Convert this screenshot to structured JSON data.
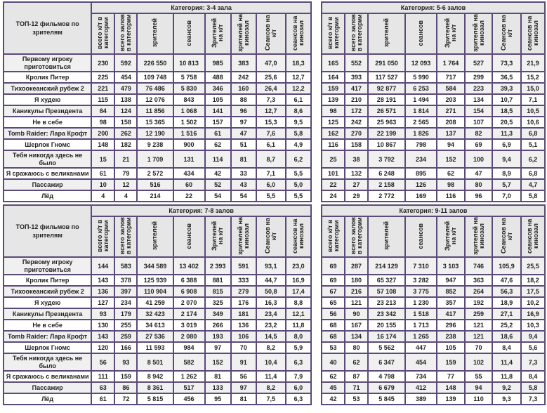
{
  "corner_label": "ТОП-12 фильмов по зрителям",
  "columns": [
    "всего к/т в категории",
    "всего залов в категории",
    "зрителей",
    "сеансов",
    "Зрителей на к/т",
    "зрителей на кинозал",
    "Сеансов на к/т",
    "сеансов на кинозал"
  ],
  "films": [
    "Первому игроку приготовиться",
    "Кролик Питер",
    "Тихоокеанский рубеж 2",
    "Я худею",
    "Каникулы Президента",
    "Не в себе",
    "Tomb Raider: Лара Крофт",
    "Шерлок Гномс",
    "Тебя никогда здесь не было",
    "Я сражаюсь с великанами",
    "Пассажир",
    "Лёд"
  ],
  "colors": {
    "border": "#5c4a78",
    "title": "#7d3f8e",
    "header_bg": "#e6e6e6",
    "row_alt": "#f0f0f0"
  },
  "tables": [
    {
      "title": "Категория: 3-4 зала",
      "rows": [
        [
          "230",
          "592",
          "226 550",
          "10 813",
          "985",
          "383",
          "47,0",
          "18,3"
        ],
        [
          "225",
          "454",
          "109 748",
          "5 758",
          "488",
          "242",
          "25,6",
          "12,7"
        ],
        [
          "221",
          "479",
          "76 486",
          "5 830",
          "346",
          "160",
          "26,4",
          "12,2"
        ],
        [
          "115",
          "138",
          "12 076",
          "843",
          "105",
          "88",
          "7,3",
          "6,1"
        ],
        [
          "84",
          "124",
          "11 856",
          "1 068",
          "141",
          "96",
          "12,7",
          "8,6"
        ],
        [
          "98",
          "158",
          "15 365",
          "1 502",
          "157",
          "97",
          "15,3",
          "9,5"
        ],
        [
          "200",
          "262",
          "12 190",
          "1 516",
          "61",
          "47",
          "7,6",
          "5,8"
        ],
        [
          "148",
          "182",
          "9 238",
          "900",
          "62",
          "51",
          "6,1",
          "4,9"
        ],
        [
          "15",
          "21",
          "1 709",
          "131",
          "114",
          "81",
          "8,7",
          "6,2"
        ],
        [
          "61",
          "79",
          "2 572",
          "434",
          "42",
          "33",
          "7,1",
          "5,5"
        ],
        [
          "10",
          "12",
          "516",
          "60",
          "52",
          "43",
          "6,0",
          "5,0"
        ],
        [
          "4",
          "4",
          "214",
          "22",
          "54",
          "54",
          "5,5",
          "5,5"
        ]
      ]
    },
    {
      "title": "Категория: 5-6 залов",
      "rows": [
        [
          "165",
          "552",
          "291 050",
          "12 093",
          "1 764",
          "527",
          "73,3",
          "21,9"
        ],
        [
          "164",
          "393",
          "117 527",
          "5 990",
          "717",
          "299",
          "36,5",
          "15,2"
        ],
        [
          "159",
          "417",
          "92 877",
          "6 253",
          "584",
          "223",
          "39,3",
          "15,0"
        ],
        [
          "139",
          "210",
          "28 191",
          "1 494",
          "203",
          "134",
          "10,7",
          "7,1"
        ],
        [
          "98",
          "172",
          "26 571",
          "1 814",
          "271",
          "154",
          "18,5",
          "10,5"
        ],
        [
          "125",
          "242",
          "25 963",
          "2 565",
          "208",
          "107",
          "20,5",
          "10,6"
        ],
        [
          "162",
          "270",
          "22 199",
          "1 826",
          "137",
          "82",
          "11,3",
          "6,8"
        ],
        [
          "116",
          "158",
          "10 867",
          "798",
          "94",
          "69",
          "6,9",
          "5,1"
        ],
        [
          "25",
          "38",
          "3 792",
          "234",
          "152",
          "100",
          "9,4",
          "6,2"
        ],
        [
          "101",
          "132",
          "6 248",
          "895",
          "62",
          "47",
          "8,9",
          "6,8"
        ],
        [
          "22",
          "27",
          "2 158",
          "126",
          "98",
          "80",
          "5,7",
          "4,7"
        ],
        [
          "24",
          "29",
          "2 772",
          "169",
          "116",
          "96",
          "7,0",
          "5,8"
        ]
      ]
    },
    {
      "title": "Категория: 7-8 залов",
      "rows": [
        [
          "144",
          "583",
          "344 589",
          "13 402",
          "2 393",
          "591",
          "93,1",
          "23,0"
        ],
        [
          "143",
          "378",
          "125 939",
          "6 388",
          "881",
          "333",
          "44,7",
          "16,9"
        ],
        [
          "136",
          "397",
          "110 904",
          "6 908",
          "815",
          "279",
          "50,8",
          "17,4"
        ],
        [
          "127",
          "234",
          "41 259",
          "2 070",
          "325",
          "176",
          "16,3",
          "8,8"
        ],
        [
          "93",
          "179",
          "32 423",
          "2 174",
          "349",
          "181",
          "23,4",
          "12,1"
        ],
        [
          "130",
          "255",
          "34 613",
          "3 019",
          "266",
          "136",
          "23,2",
          "11,8"
        ],
        [
          "143",
          "259",
          "27 536",
          "2 080",
          "193",
          "106",
          "14,5",
          "8,0"
        ],
        [
          "120",
          "166",
          "11 593",
          "984",
          "97",
          "70",
          "8,2",
          "5,9"
        ],
        [
          "56",
          "93",
          "8 501",
          "582",
          "152",
          "91",
          "10,4",
          "6,3"
        ],
        [
          "111",
          "159",
          "8 942",
          "1 262",
          "81",
          "56",
          "11,4",
          "7,9"
        ],
        [
          "63",
          "86",
          "8 361",
          "517",
          "133",
          "97",
          "8,2",
          "6,0"
        ],
        [
          "61",
          "72",
          "5 815",
          "456",
          "95",
          "81",
          "7,5",
          "6,3"
        ]
      ]
    },
    {
      "title": "Категория: 9-11 залов",
      "rows": [
        [
          "69",
          "287",
          "214 129",
          "7 310",
          "3 103",
          "746",
          "105,9",
          "25,5"
        ],
        [
          "69",
          "180",
          "65 327",
          "3 282",
          "947",
          "363",
          "47,6",
          "18,2"
        ],
        [
          "67",
          "216",
          "57 108",
          "3 775",
          "852",
          "264",
          "56,3",
          "17,5"
        ],
        [
          "65",
          "121",
          "23 213",
          "1 230",
          "357",
          "192",
          "18,9",
          "10,2"
        ],
        [
          "56",
          "90",
          "23 342",
          "1 518",
          "417",
          "259",
          "27,1",
          "16,9"
        ],
        [
          "68",
          "167",
          "20 155",
          "1 713",
          "296",
          "121",
          "25,2",
          "10,3"
        ],
        [
          "68",
          "134",
          "16 174",
          "1 265",
          "238",
          "121",
          "18,6",
          "9,4"
        ],
        [
          "53",
          "80",
          "5 562",
          "447",
          "105",
          "70",
          "8,4",
          "5,6"
        ],
        [
          "40",
          "62",
          "6 347",
          "454",
          "159",
          "102",
          "11,4",
          "7,3"
        ],
        [
          "62",
          "87",
          "4 798",
          "734",
          "77",
          "55",
          "11,8",
          "8,4"
        ],
        [
          "45",
          "71",
          "6 679",
          "412",
          "148",
          "94",
          "9,2",
          "5,8"
        ],
        [
          "42",
          "53",
          "5 845",
          "389",
          "139",
          "110",
          "9,3",
          "7,3"
        ]
      ]
    }
  ]
}
